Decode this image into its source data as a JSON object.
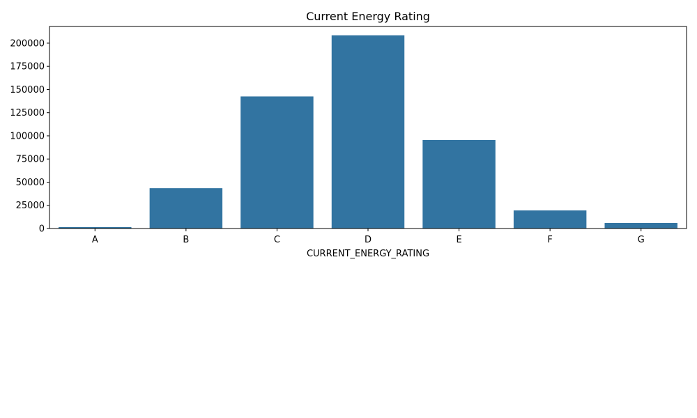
{
  "chart_data": {
    "type": "bar",
    "title": "Current Energy Rating",
    "xlabel": "CURRENT_ENERGY_RATING",
    "ylabel": "",
    "categories": [
      "A",
      "B",
      "C",
      "D",
      "E",
      "F",
      "G"
    ],
    "values": [
      1500,
      43500,
      142500,
      208500,
      95500,
      19500,
      6000
    ],
    "ylim": [
      0,
      218000
    ],
    "yticks": [
      0,
      25000,
      50000,
      75000,
      100000,
      125000,
      150000,
      175000,
      200000
    ],
    "bar_color": "#3274a1",
    "grid": false,
    "legend": "none"
  }
}
